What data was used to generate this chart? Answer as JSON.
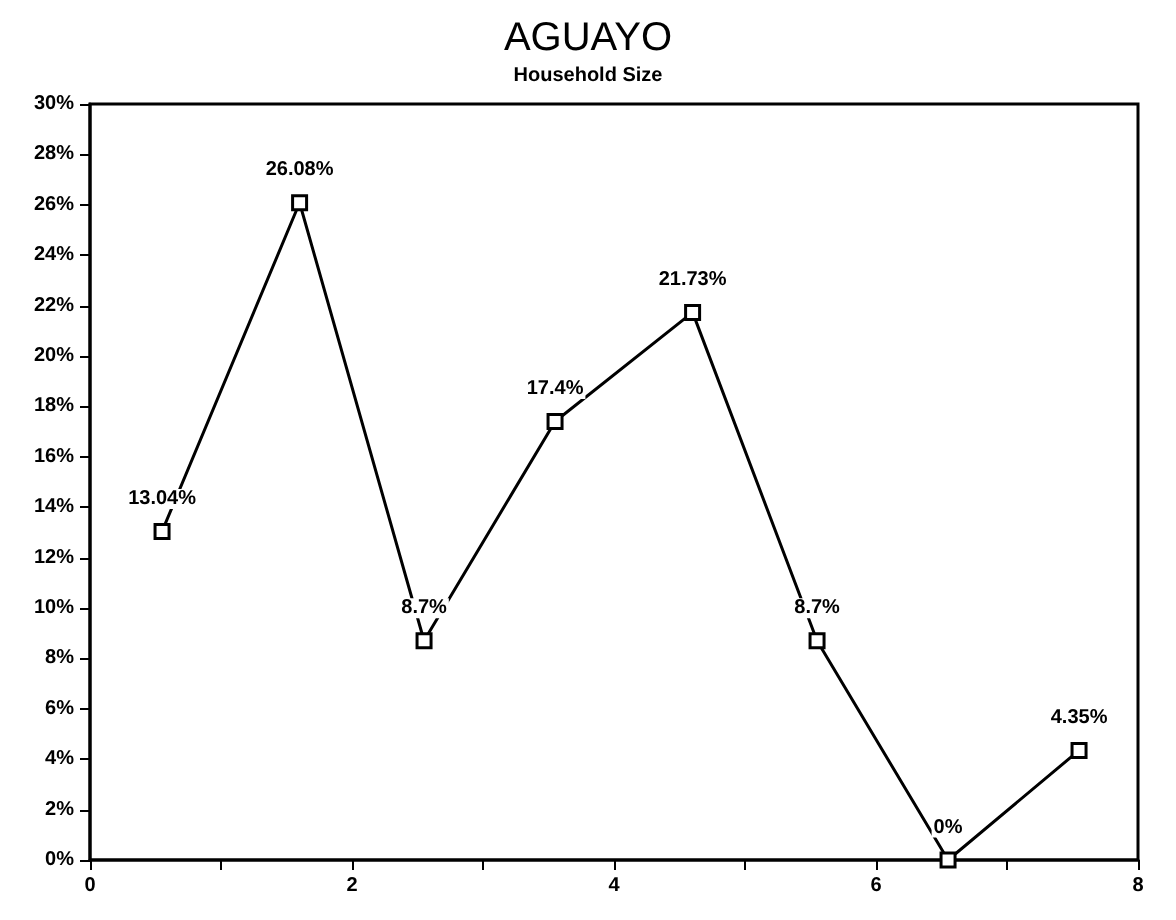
{
  "chart_data": {
    "type": "line",
    "title": "AGUAYO",
    "subtitle": "Household Size",
    "x": [
      0.55,
      1.6,
      2.55,
      3.55,
      4.6,
      5.55,
      6.55,
      7.55
    ],
    "values": [
      13.04,
      26.08,
      8.7,
      17.4,
      21.73,
      8.7,
      0,
      4.35
    ],
    "value_labels": [
      "13.04%",
      "26.08%",
      "8.7%",
      "17.4%",
      "21.73%",
      "8.7%",
      "0%",
      "4.35%"
    ],
    "color": "#000000",
    "marker": "square",
    "grid": false,
    "xlim": [
      0,
      8
    ],
    "xticks": [
      0,
      {
        "value": 1,
        "label": null
      },
      2,
      {
        "value": 3,
        "label": null
      },
      4,
      {
        "value": 5,
        "label": null
      },
      6,
      {
        "value": 7,
        "label": null
      },
      8
    ],
    "ylim": [
      0,
      30
    ],
    "yticks": [
      {
        "value": 0,
        "label": "0%"
      },
      {
        "value": 2,
        "label": "2%"
      },
      {
        "value": 4,
        "label": "4%"
      },
      {
        "value": 6,
        "label": "6%"
      },
      {
        "value": 8,
        "label": "8%"
      },
      {
        "value": 10,
        "label": "10%"
      },
      {
        "value": 12,
        "label": "12%"
      },
      {
        "value": 14,
        "label": "14%"
      },
      {
        "value": 16,
        "label": "16%"
      },
      {
        "value": 18,
        "label": "18%"
      },
      {
        "value": 20,
        "label": "20%"
      },
      {
        "value": 22,
        "label": "22%"
      },
      {
        "value": 24,
        "label": "24%"
      },
      {
        "value": 26,
        "label": "26%"
      },
      {
        "value": 28,
        "label": "28%"
      },
      {
        "value": 30,
        "label": "30%"
      }
    ]
  }
}
